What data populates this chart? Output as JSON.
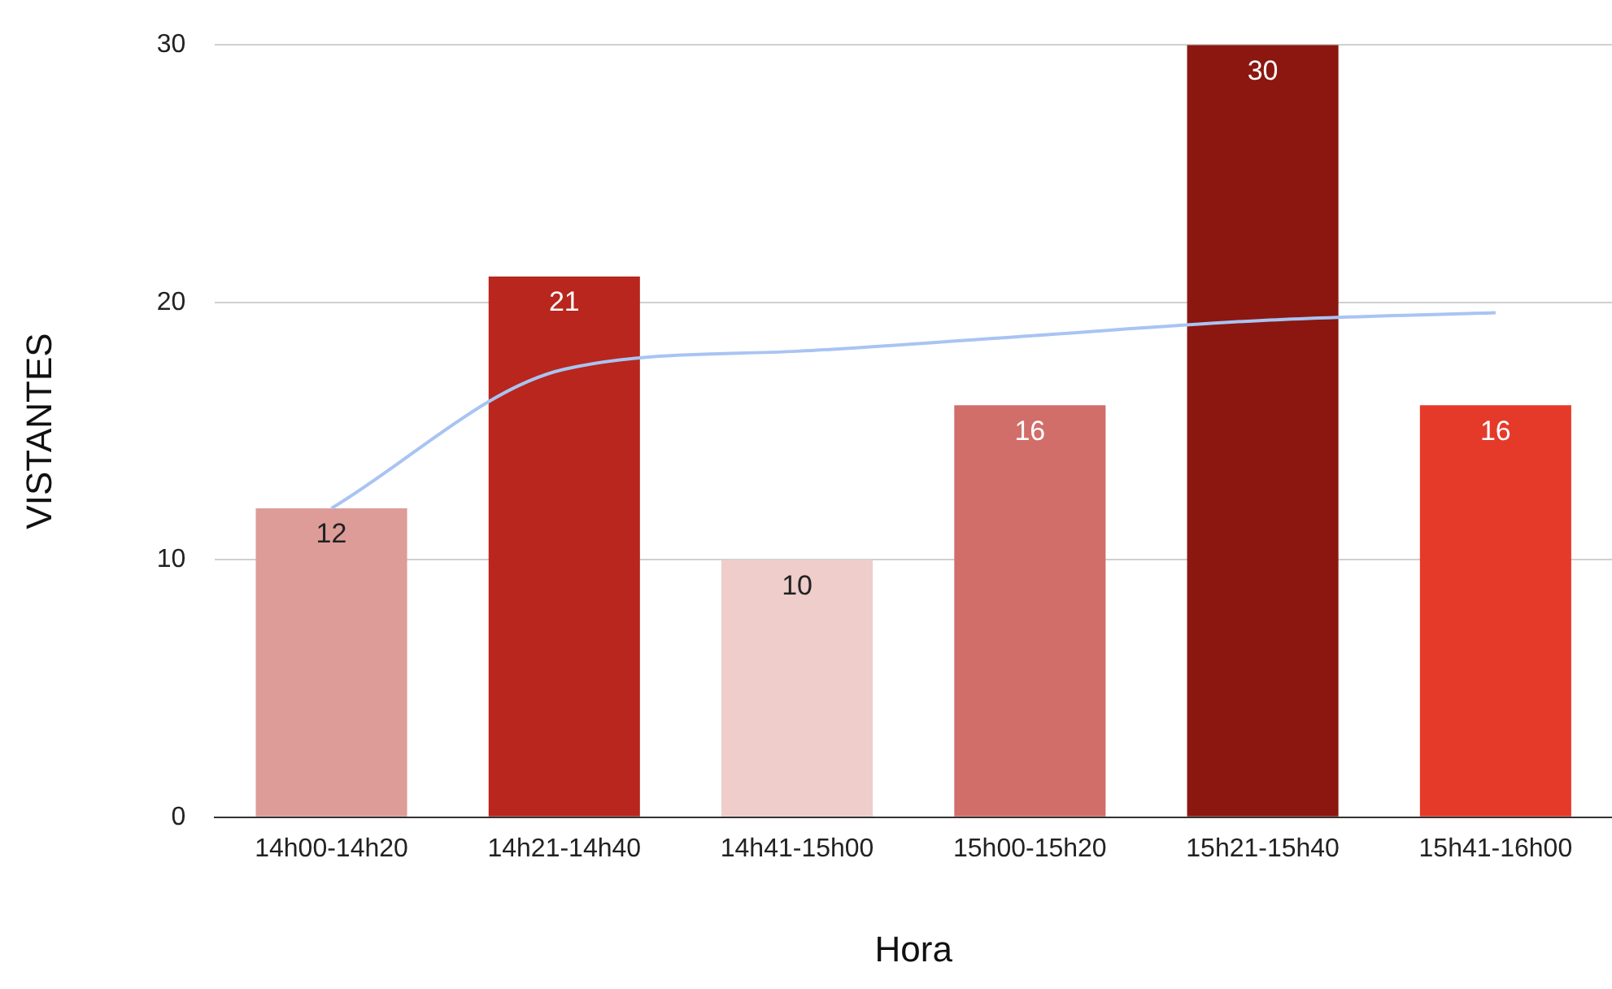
{
  "chart_data": {
    "type": "bar",
    "xlabel": "Hora",
    "ylabel": "VISTANTES",
    "categories": [
      "14h00-14h20",
      "14h21-14h40",
      "14h41-15h00",
      "15h00-15h20",
      "15h21-15h40",
      "15h41-16h00"
    ],
    "series": [
      {
        "colors": [
          "#dd9c98",
          "#b8261d",
          "#eecdca",
          "#d16e6a",
          "#8b1710",
          "#e53a2a"
        ],
        "values": [
          12,
          21,
          10,
          16,
          30,
          16
        ],
        "value_labels": [
          "12",
          "21",
          "10",
          "16",
          "30",
          "16"
        ]
      },
      {
        "type": "line",
        "color": "#a9c4f2",
        "values": [
          12,
          17.4,
          18.1,
          18.7,
          19.3,
          19.6
        ],
        "marker": "none"
      }
    ],
    "ylim": [
      0,
      30
    ],
    "yticks": [
      0,
      10,
      20,
      30
    ],
    "grid": "y",
    "legend": false
  }
}
